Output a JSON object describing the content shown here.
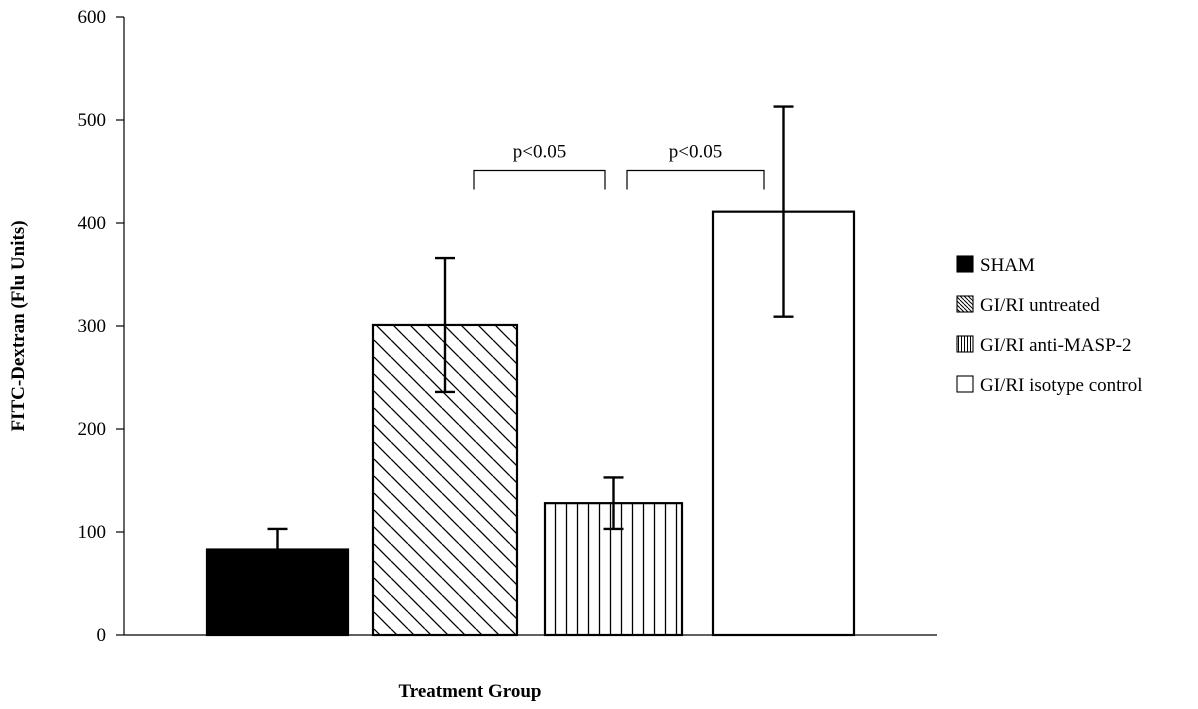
{
  "chart_data": {
    "type": "bar",
    "title": "",
    "xlabel": "Treatment Group",
    "ylabel": "FITC-Dextran (Flu Units)",
    "ylim": [
      0,
      600
    ],
    "yticks": [
      0,
      100,
      200,
      300,
      400,
      500,
      600
    ],
    "grid": false,
    "legend_position": "right",
    "series": [
      {
        "name": "SHAM",
        "value": 83,
        "error": 20,
        "fill": "solid",
        "color": "#000000"
      },
      {
        "name": "GI/RI untreated",
        "value": 301,
        "error": 65,
        "fill": "diagonal-hatch",
        "color": "#000000"
      },
      {
        "name": "GI/RI anti-MASP-2",
        "value": 128,
        "error": 25,
        "fill": "vertical-hatch",
        "color": "#000000"
      },
      {
        "name": "GI/RI isotype control",
        "value": 411,
        "error": 102,
        "fill": "none",
        "color": "#000000"
      }
    ],
    "annotations": [
      {
        "text": "p<0.05",
        "from": 1,
        "to": 2,
        "y": 450
      },
      {
        "text": "p<0.05",
        "from": 2,
        "to": 3,
        "y": 450
      }
    ]
  }
}
